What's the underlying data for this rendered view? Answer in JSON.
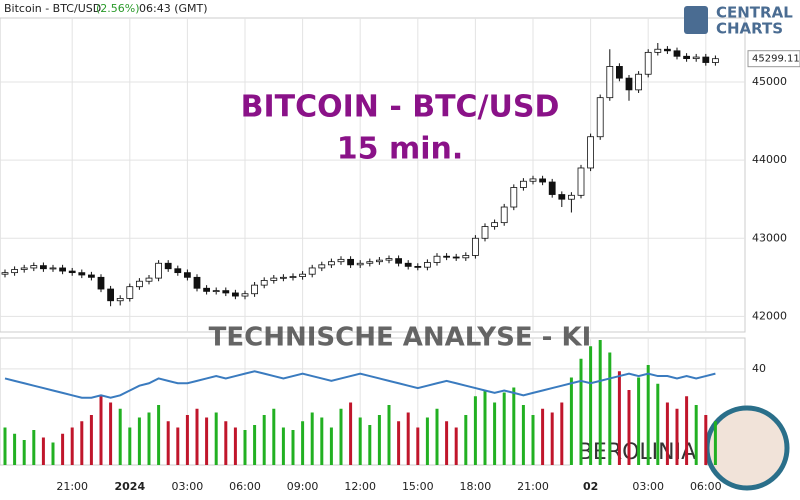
{
  "header": {
    "symbol": "Bitcoin - BTC/USD",
    "change": "(2.56%)",
    "time": "06:43 (GMT)"
  },
  "logo": {
    "line1": "CENTRAL",
    "line2": "CHARTS"
  },
  "watermark": {
    "text": "TECHNISCHE  ANALYSE - KI",
    "brand": "BEROLINIA"
  },
  "chart_data": [
    {
      "type": "candlestick",
      "title": "BITCOIN - BTC/USD",
      "subtitle": "15 min.",
      "categories": [
        null,
        null,
        null,
        null,
        null,
        null,
        null,
        "21:00",
        null,
        null,
        null,
        null,
        null,
        "2024",
        null,
        null,
        null,
        null,
        null,
        "03:00",
        null,
        null,
        null,
        null,
        null,
        "06:00",
        null,
        null,
        null,
        null,
        null,
        "09:00",
        null,
        null,
        null,
        null,
        null,
        "12:00",
        null,
        null,
        null,
        null,
        null,
        "15:00",
        null,
        null,
        null,
        null,
        null,
        "18:00",
        null,
        null,
        null,
        null,
        null,
        "21:00",
        null,
        null,
        null,
        null,
        null,
        "02",
        null,
        null,
        null,
        null,
        null,
        "03:00",
        null,
        null,
        null,
        null,
        null,
        "06:00",
        null
      ],
      "open": [
        42540,
        42560,
        42600,
        42620,
        42650,
        42610,
        42620,
        42580,
        42560,
        42530,
        42500,
        42350,
        42200,
        42230,
        42380,
        42450,
        42490,
        42680,
        42610,
        42560,
        42500,
        42360,
        42320,
        42330,
        42300,
        42260,
        42290,
        42400,
        42460,
        42490,
        42500,
        42510,
        42540,
        42620,
        42660,
        42700,
        42730,
        42660,
        42680,
        42700,
        42720,
        42740,
        42680,
        42640,
        42630,
        42690,
        42770,
        42760,
        42750,
        42780,
        43000,
        43150,
        43200,
        43400,
        43650,
        43730,
        43760,
        43720,
        43560,
        43500,
        43550,
        43900,
        44300,
        44800,
        45200,
        45050,
        44900,
        45100,
        45380,
        45420,
        45400,
        45330,
        45300,
        45320,
        45250
      ],
      "high": [
        42600,
        42640,
        42660,
        42690,
        42690,
        42660,
        42660,
        42620,
        42600,
        42570,
        42540,
        42390,
        42270,
        42420,
        42490,
        42530,
        42720,
        42720,
        42650,
        42600,
        42540,
        42400,
        42370,
        42370,
        42340,
        42330,
        42440,
        42500,
        42530,
        42540,
        42550,
        42580,
        42660,
        42700,
        42740,
        42770,
        42770,
        42720,
        42740,
        42760,
        42780,
        42780,
        42720,
        42680,
        42730,
        42810,
        42810,
        42800,
        42820,
        43040,
        43190,
        43240,
        43440,
        43690,
        43770,
        43800,
        43800,
        43760,
        43600,
        43590,
        43940,
        44340,
        44840,
        45420,
        45240,
        45090,
        45140,
        45420,
        45500,
        45460,
        45440,
        45370,
        45360,
        45360,
        45340
      ],
      "low": [
        42500,
        42520,
        42560,
        42580,
        42570,
        42570,
        42540,
        42520,
        42490,
        42460,
        42310,
        42130,
        42140,
        42190,
        42340,
        42410,
        42450,
        42570,
        42520,
        42460,
        42320,
        42280,
        42280,
        42260,
        42220,
        42220,
        42250,
        42360,
        42420,
        42450,
        42460,
        42470,
        42500,
        42580,
        42620,
        42660,
        42620,
        42620,
        42640,
        42660,
        42680,
        42640,
        42600,
        42590,
        42590,
        42650,
        42720,
        42710,
        42710,
        42740,
        42960,
        43110,
        43160,
        43360,
        43610,
        43690,
        43680,
        43520,
        43400,
        43330,
        43510,
        43860,
        44260,
        44760,
        45010,
        44760,
        44860,
        45060,
        45340,
        45360,
        45290,
        45260,
        45260,
        45210,
        45210
      ],
      "close": [
        42560,
        42600,
        42620,
        42650,
        42610,
        42620,
        42580,
        42560,
        42530,
        42500,
        42350,
        42200,
        42230,
        42380,
        42450,
        42490,
        42680,
        42610,
        42560,
        42500,
        42360,
        42320,
        42330,
        42300,
        42260,
        42290,
        42400,
        42460,
        42490,
        42500,
        42510,
        42540,
        42620,
        42660,
        42700,
        42730,
        42660,
        42680,
        42700,
        42720,
        42740,
        42680,
        42640,
        42630,
        42690,
        42770,
        42760,
        42750,
        42780,
        43000,
        43150,
        43200,
        43400,
        43650,
        43730,
        43760,
        43720,
        43560,
        43500,
        43550,
        43900,
        44300,
        44800,
        45200,
        45050,
        44900,
        45100,
        45380,
        45420,
        45400,
        45330,
        45300,
        45320,
        45250,
        45299.11
      ],
      "up_color": "#ffffff",
      "down_color": "#111111",
      "ylim": [
        41800,
        45820
      ],
      "yticks": [
        42000,
        43000,
        44000,
        45000
      ],
      "grid": true
    },
    {
      "type": "volume",
      "values": [
        30,
        25,
        20,
        28,
        22,
        18,
        25,
        30,
        35,
        40,
        55,
        50,
        45,
        30,
        38,
        42,
        48,
        35,
        30,
        40,
        45,
        38,
        42,
        35,
        30,
        28,
        32,
        40,
        45,
        30,
        28,
        35,
        42,
        38,
        30,
        45,
        50,
        38,
        32,
        40,
        48,
        35,
        42,
        30,
        38,
        45,
        35,
        30,
        40,
        55,
        60,
        50,
        58,
        62,
        48,
        40,
        45,
        42,
        50,
        70,
        85,
        95,
        100,
        90,
        75,
        60,
        70,
        80,
        65,
        50,
        45,
        55,
        48,
        40,
        35
      ],
      "ylim": [
        0,
        100
      ],
      "up_color": "#22b022",
      "down_color": "#c0162b",
      "series": [
        {
          "axis": "y2",
          "color": "#3a7bbf",
          "values": [
            38,
            37.5,
            37,
            36.5,
            36,
            35.5,
            35,
            34.5,
            34,
            34,
            34.5,
            34,
            34.5,
            35.5,
            36.5,
            37,
            38,
            37.5,
            37,
            37,
            37.5,
            38,
            38.5,
            38,
            38.5,
            39,
            39.5,
            39,
            38.5,
            38,
            38.5,
            39,
            38.5,
            38,
            37.5,
            38,
            38.5,
            39,
            38.5,
            38,
            37.5,
            37,
            36.5,
            36,
            36.5,
            37,
            37.5,
            37,
            36.5,
            36,
            35.5,
            35,
            35.5,
            35,
            34.5,
            35,
            35.5,
            36,
            36.5,
            37,
            37.5,
            37,
            37.5,
            38,
            38.5,
            39,
            38.5,
            39,
            38.5,
            38.5,
            38,
            38.5,
            38,
            38.5,
            39
          ]
        }
      ],
      "y2lim": [
        20,
        46
      ],
      "y2ticks": [
        40
      ]
    }
  ]
}
